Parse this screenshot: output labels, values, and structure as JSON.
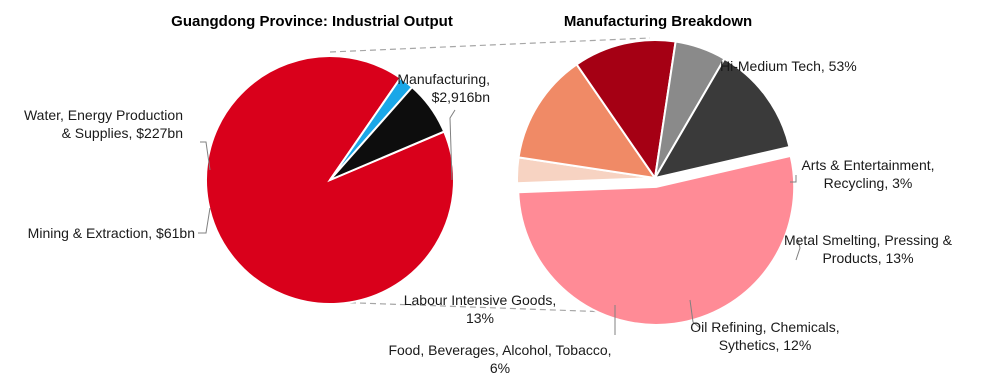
{
  "chart_data": [
    {
      "type": "pie",
      "title": "Guangdong Province: Industrial Output",
      "slices": [
        {
          "label_lines": [
            "Manufacturing,",
            "$2,916bn"
          ],
          "value": 2916,
          "color": "#d9001b"
        },
        {
          "label_lines": [
            "Mining & Extraction, $61bn"
          ],
          "value": 61,
          "color": "#1aa7e8"
        },
        {
          "label_lines": [
            "Water, Energy Production",
            "& Supplies, $227bn"
          ],
          "value": 227,
          "color": "#0d0d0d"
        }
      ]
    },
    {
      "type": "pie",
      "title": "Manufacturing Breakdown",
      "slices": [
        {
          "label_lines": [
            "Hi-Medium Tech, 53%"
          ],
          "value": 53,
          "color": "#ff8b96"
        },
        {
          "label_lines": [
            "Arts & Entertainment,",
            "Recycling, 3%"
          ],
          "value": 3,
          "color": "#f7d3c2"
        },
        {
          "label_lines": [
            "Metal Smelting, Pressing &",
            "Products, 13%"
          ],
          "value": 13,
          "color": "#f08a66"
        },
        {
          "label_lines": [
            "Oil Refining, Chemicals,",
            "Sythetics, 12%"
          ],
          "value": 12,
          "color": "#a50014"
        },
        {
          "label_lines": [
            "Food, Beverages, Alcohol, Tobacco,",
            "6%"
          ],
          "value": 6,
          "color": "#8a8a8a"
        },
        {
          "label_lines": [
            "Labour Intensive Goods,",
            "13%"
          ],
          "value": 13,
          "color": "#3a3a3a"
        }
      ]
    }
  ]
}
